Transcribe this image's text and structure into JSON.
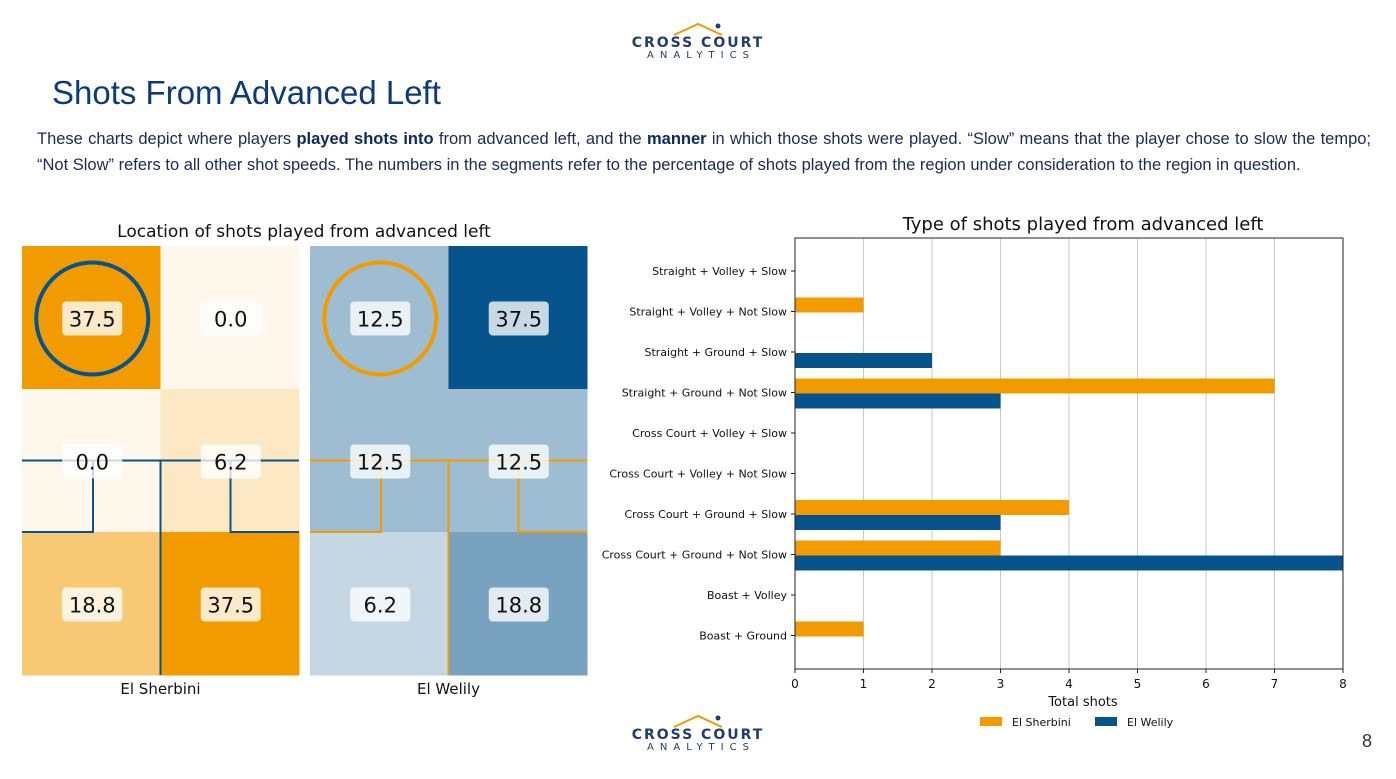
{
  "logo": {
    "line1": "CROSS COURT",
    "line2": "ANALYTICS"
  },
  "page_title": "Shots From Advanced Left",
  "description": {
    "part1": "These charts depict where players ",
    "bold1": "played shots into",
    "part2": " from advanced left, and the ",
    "bold2": "manner",
    "part3": " in which those shots were played. “Slow” means that the player chose to slow the tempo; “Not Slow” refers to all other shot speeds. The numbers in the segments refer to the percentage of shots played from the region under consideration to the region in question."
  },
  "page_number": "8",
  "colors": {
    "sherbini": "#F29B00",
    "welily": "#06548B"
  },
  "chart_data": [
    {
      "type": "heatmap",
      "title": "Location of shots played from advanced left",
      "players": [
        {
          "name": "El Sherbini",
          "grid": [
            [
              "37.5",
              "0.0"
            ],
            [
              "0.0",
              "6.2"
            ],
            [
              "18.8",
              "37.5"
            ]
          ],
          "values": [
            [
              37.5,
              0.0
            ],
            [
              0.0,
              6.2
            ],
            [
              18.8,
              37.5
            ]
          ],
          "highlighted_cell": [
            0,
            0
          ],
          "highlight_color": "#06548B",
          "wall_color": "#06548B",
          "base_color": "#F29B00"
        },
        {
          "name": "El Welily",
          "grid": [
            [
              "12.5",
              "37.5"
            ],
            [
              "12.5",
              "12.5"
            ],
            [
              "6.2",
              "18.8"
            ]
          ],
          "values": [
            [
              12.5,
              37.5
            ],
            [
              12.5,
              12.5
            ],
            [
              6.2,
              18.8
            ]
          ],
          "highlighted_cell": [
            0,
            0
          ],
          "highlight_color": "#F29B00",
          "wall_color": "#F29B00",
          "base_color": "#06548B"
        }
      ]
    },
    {
      "type": "bar",
      "orientation": "horizontal",
      "title": "Type of shots played from advanced left",
      "categories": [
        "Straight + Volley + Slow",
        "Straight + Volley + Not Slow",
        "Straight + Ground + Slow",
        "Straight + Ground + Not Slow",
        "Cross Court + Volley + Slow",
        "Cross Court + Volley + Not Slow",
        "Cross Court + Ground + Slow",
        "Cross Court + Ground + Not Slow",
        "Boast + Volley",
        "Boast + Ground"
      ],
      "series": [
        {
          "name": "El Sherbini",
          "color": "#F29B00",
          "values": [
            0,
            1,
            0,
            7,
            0,
            0,
            4,
            3,
            0,
            1
          ]
        },
        {
          "name": "El Welily",
          "color": "#06548B",
          "values": [
            0,
            0,
            2,
            3,
            0,
            0,
            3,
            8,
            0,
            0
          ]
        }
      ],
      "xlabel": "Total shots",
      "ylabel": "",
      "xlim": [
        0,
        8
      ],
      "xticks": [
        "0",
        "1",
        "2",
        "3",
        "4",
        "5",
        "6",
        "7",
        "8"
      ],
      "grid": true,
      "legend": "bottom"
    }
  ]
}
